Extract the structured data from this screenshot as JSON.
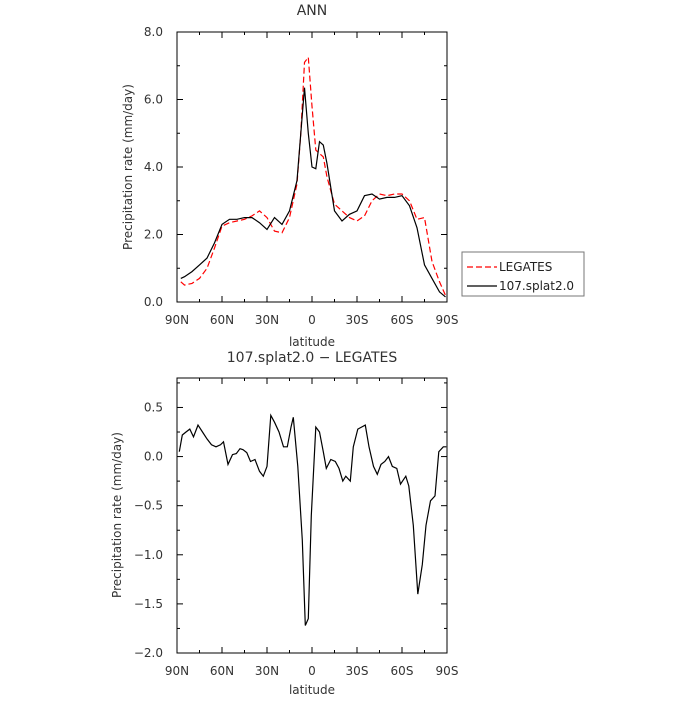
{
  "chart_data": [
    {
      "type": "line",
      "title": "ANN",
      "xlabel": "latitude",
      "ylabel": "Precipitation rate (mm/day)",
      "xlim": [
        90,
        -90
      ],
      "ylim": [
        0,
        8
      ],
      "x_tick_labels": [
        "90N",
        "60N",
        "30N",
        "0",
        "30S",
        "60S",
        "90S"
      ],
      "y_tick_labels": [
        "0.0",
        "2.0",
        "4.0",
        "6.0",
        "8.0"
      ],
      "legend": "right, outside plot",
      "series": [
        {
          "name": "LEGATES",
          "color": "#ff0000",
          "style": "dashed",
          "x": [
            87.5,
            85,
            80,
            75,
            70,
            65,
            60,
            55,
            50,
            45,
            40,
            35,
            30,
            25,
            20,
            15,
            10,
            7.5,
            5,
            2.5,
            0,
            -2.5,
            -5,
            -7.5,
            -10,
            -15,
            -20,
            -25,
            -30,
            -35,
            -40,
            -45,
            -50,
            -55,
            -60,
            -65,
            -70,
            -75,
            -80,
            -85,
            -89
          ],
          "values": [
            0.6,
            0.5,
            0.55,
            0.7,
            1.0,
            1.6,
            2.25,
            2.35,
            2.4,
            2.45,
            2.55,
            2.7,
            2.5,
            2.1,
            2.05,
            2.5,
            3.5,
            5.0,
            7.1,
            7.25,
            5.8,
            4.5,
            4.4,
            4.3,
            3.7,
            2.9,
            2.7,
            2.5,
            2.4,
            2.55,
            3.0,
            3.2,
            3.15,
            3.2,
            3.2,
            3.0,
            2.45,
            2.5,
            1.2,
            0.6,
            0.2
          ]
        },
        {
          "name": "107.splat2.0",
          "color": "#000000",
          "style": "solid",
          "x": [
            87.5,
            85,
            80,
            75,
            70,
            65,
            60,
            55,
            50,
            45,
            40,
            35,
            30,
            25,
            20,
            15,
            10,
            7.5,
            5,
            2.5,
            0,
            -2.5,
            -5,
            -7.5,
            -10,
            -15,
            -20,
            -25,
            -30,
            -35,
            -40,
            -45,
            -50,
            -55,
            -60,
            -65,
            -70,
            -75,
            -80,
            -85,
            -89
          ],
          "values": [
            0.7,
            0.75,
            0.9,
            1.1,
            1.3,
            1.75,
            2.3,
            2.45,
            2.45,
            2.5,
            2.5,
            2.35,
            2.15,
            2.5,
            2.3,
            2.7,
            3.6,
            5.0,
            6.35,
            5.0,
            4.0,
            3.95,
            4.75,
            4.65,
            4.1,
            2.7,
            2.4,
            2.6,
            2.7,
            3.15,
            3.2,
            3.05,
            3.1,
            3.1,
            3.15,
            2.85,
            2.2,
            1.1,
            0.7,
            0.3,
            0.15
          ]
        }
      ]
    },
    {
      "type": "line",
      "title": "107.splat2.0 − LEGATES",
      "xlabel": "latitude",
      "ylabel": "Precipitation rate (mm/day)",
      "xlim": [
        90,
        -90
      ],
      "ylim": [
        -2.0,
        0.8
      ],
      "x_tick_labels": [
        "90N",
        "60N",
        "30N",
        "0",
        "30S",
        "60S",
        "90S"
      ],
      "y_tick_labels": [
        "−2.0",
        "−1.5",
        "−1.0",
        "−0.5",
        "0.0",
        "0.5"
      ],
      "series": [
        {
          "color": "#000000",
          "style": "solid",
          "x": [
            88.5,
            86.5,
            84,
            81.5,
            79,
            76,
            73,
            70,
            67,
            64,
            61,
            59,
            56,
            53,
            50.5,
            48,
            46,
            43.5,
            41,
            38,
            35,
            32.5,
            30,
            27.5,
            25,
            22,
            19,
            16.5,
            14,
            12.5,
            9.5,
            6.5,
            4.5,
            2.5,
            0.5,
            -2.5,
            -5,
            -7.5,
            -9.5,
            -12.5,
            -15.5,
            -18,
            -20.5,
            -22.5,
            -25.5,
            -27.5,
            -30.5,
            -33,
            -35.5,
            -38,
            -41,
            -43.5,
            -46,
            -48.5,
            -51,
            -53.5,
            -56.5,
            -59,
            -62.5,
            -64.5,
            -67.5,
            -70.5,
            -73.5,
            -76,
            -79,
            -82,
            -84.5,
            -87.5,
            -89.5
          ],
          "values": [
            0.05,
            0.22,
            0.25,
            0.28,
            0.2,
            0.32,
            0.25,
            0.18,
            0.12,
            0.1,
            0.12,
            0.15,
            -0.08,
            0.02,
            0.03,
            0.08,
            0.07,
            0.04,
            -0.05,
            -0.03,
            -0.15,
            -0.2,
            -0.1,
            0.42,
            0.35,
            0.25,
            0.1,
            0.1,
            0.3,
            0.4,
            -0.1,
            -0.85,
            -1.72,
            -1.65,
            -0.6,
            0.3,
            0.25,
            0.05,
            -0.12,
            -0.03,
            -0.05,
            -0.12,
            -0.25,
            -0.2,
            -0.25,
            0.1,
            0.28,
            0.3,
            0.32,
            0.1,
            -0.1,
            -0.18,
            -0.08,
            -0.05,
            0.0,
            -0.1,
            -0.12,
            -0.28,
            -0.2,
            -0.3,
            -0.7,
            -1.4,
            -1.1,
            -0.7,
            -0.45,
            -0.4,
            0.05,
            0.1,
            0.1
          ]
        }
      ]
    }
  ]
}
